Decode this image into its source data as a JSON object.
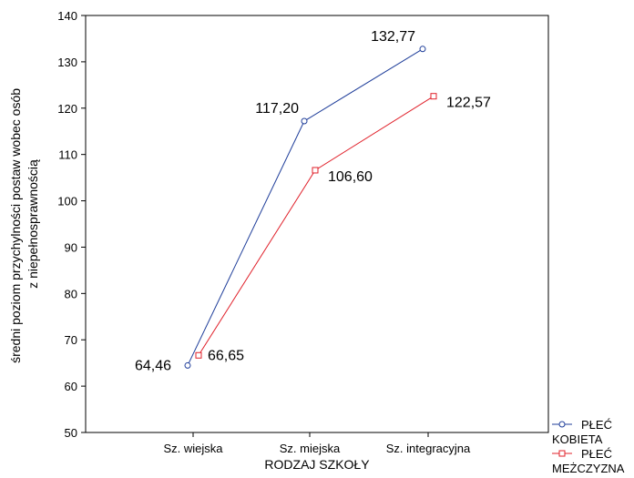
{
  "chart_data": {
    "type": "line",
    "xlabel": "RODZAJ SZKOŁY",
    "ylabel_lines": [
      "średni poziom przychylności postaw wobec osób",
      "z niepełnosprawnością"
    ],
    "categories": [
      "Sz. wiejska",
      "Sz. miejska",
      "Sz. integracyjna"
    ],
    "ylim": [
      50,
      140
    ],
    "yticks": [
      50,
      60,
      70,
      80,
      90,
      100,
      110,
      120,
      130,
      140
    ],
    "grid": false,
    "legend_position": "bottom-right",
    "series": [
      {
        "name_lines": [
          "PŁEĆ",
          "KOBIETA"
        ],
        "values": [
          64.46,
          117.2,
          132.77
        ],
        "labels": [
          "64,46",
          "117,20",
          "132,77"
        ],
        "color": "#1f3e9a",
        "marker": "circle"
      },
      {
        "name_lines": [
          "PŁEĆ",
          "MEŻCZYZNA"
        ],
        "values": [
          66.65,
          106.6,
          122.57
        ],
        "labels": [
          "66,65",
          "106,60",
          "122,57"
        ],
        "color": "#e0202a",
        "marker": "square"
      }
    ]
  }
}
